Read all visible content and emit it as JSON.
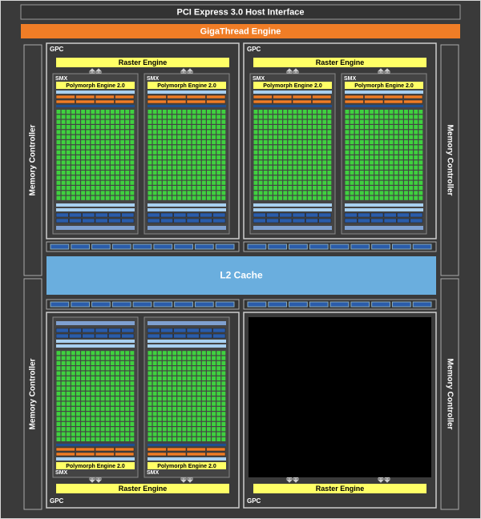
{
  "host_interface": "PCI Express 3.0 Host Interface",
  "gigathread": "GigaThread Engine",
  "l2_cache": "L2 Cache",
  "memory_controllers": [
    "Memory Controller",
    "Memory Controller",
    "Memory Controller",
    "Memory Controller"
  ],
  "gpcs": [
    {
      "label": "GPC",
      "raster_engine": "Raster Engine",
      "smx": [
        {
          "label": "SMX",
          "polymorph": "Polymorph Engine 2.0"
        },
        {
          "label": "SMX",
          "polymorph": "Polymorph Engine 2.0"
        }
      ]
    },
    {
      "label": "GPC",
      "raster_engine": "Raster Engine",
      "smx": [
        {
          "label": "SMX",
          "polymorph": "Polymorph Engine 2.0"
        },
        {
          "label": "SMX",
          "polymorph": "Polymorph Engine 2.0"
        }
      ]
    },
    {
      "label": "GPC",
      "raster_engine": "Raster Engine",
      "smx": [
        {
          "label": "SMX",
          "polymorph": "Polymorph Engine 2.0"
        },
        {
          "label": "SMX",
          "polymorph": "Polymorph Engine 2.0"
        }
      ]
    },
    {
      "label": "GPC",
      "raster_engine": "Raster Engine",
      "smx": []
    }
  ]
}
